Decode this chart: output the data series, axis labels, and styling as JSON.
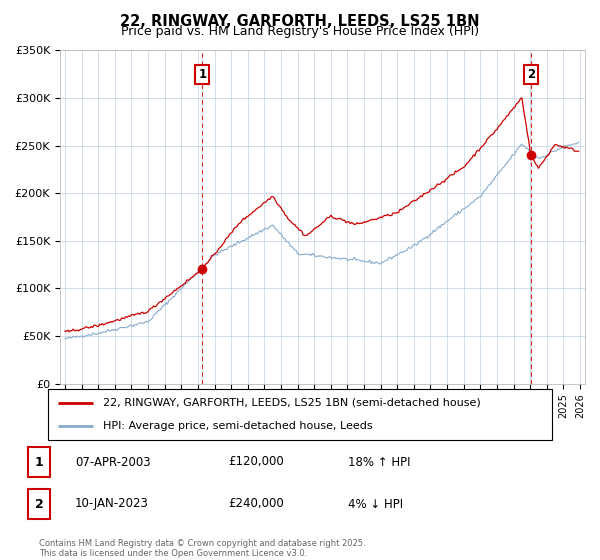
{
  "title": "22, RINGWAY, GARFORTH, LEEDS, LS25 1BN",
  "subtitle": "Price paid vs. HM Land Registry's House Price Index (HPI)",
  "legend_line1": "22, RINGWAY, GARFORTH, LEEDS, LS25 1BN (semi-detached house)",
  "legend_line2": "HPI: Average price, semi-detached house, Leeds",
  "footer": "Contains HM Land Registry data © Crown copyright and database right 2025.\nThis data is licensed under the Open Government Licence v3.0.",
  "sale1_label": "1",
  "sale1_date": "07-APR-2003",
  "sale1_price": "£120,000",
  "sale1_hpi": "18% ↑ HPI",
  "sale2_label": "2",
  "sale2_date": "10-JAN-2023",
  "sale2_price": "£240,000",
  "sale2_hpi": "4% ↓ HPI",
  "red_color": "#cc0000",
  "blue_color": "#88aacc",
  "grid_color": "#c8d8e8",
  "ylim": [
    0,
    350000
  ],
  "yticks": [
    0,
    50000,
    100000,
    150000,
    200000,
    250000,
    300000,
    350000
  ],
  "ytick_labels": [
    "£0",
    "£50K",
    "£100K",
    "£150K",
    "£200K",
    "£250K",
    "£300K",
    "£350K"
  ],
  "xlim_start": 1994.7,
  "xlim_end": 2026.3,
  "sale1_x": 2003.27,
  "sale1_y": 120000,
  "sale2_x": 2023.04,
  "sale2_y": 240000
}
